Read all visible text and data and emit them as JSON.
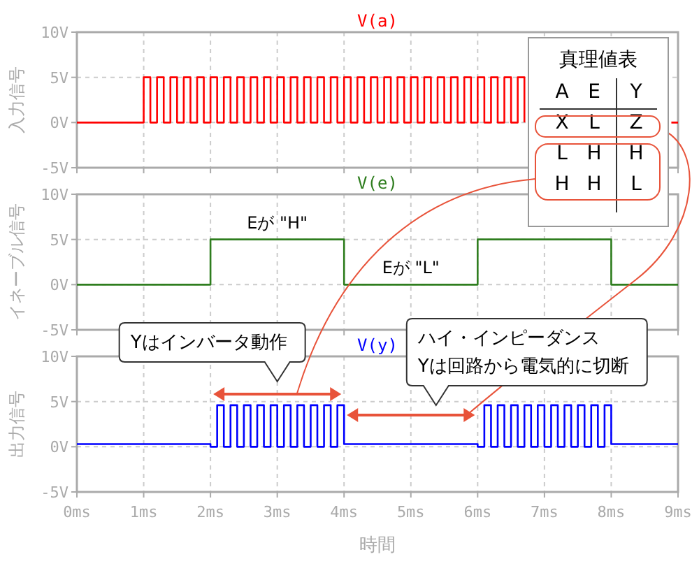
{
  "chart_data": [
    {
      "type": "step",
      "title": "V(a)",
      "ylabel": "入力信号",
      "xlim": [
        0,
        9
      ],
      "ylim": [
        -5,
        10
      ],
      "grid": true,
      "tick_labels": "y",
      "xticks": [
        0,
        1,
        2,
        3,
        4,
        5,
        6,
        7,
        8,
        9
      ],
      "yticks": [
        {
          "value": -5,
          "label": "-5V"
        },
        {
          "value": 0,
          "label": "0V"
        },
        {
          "value": 5,
          "label": "5V"
        },
        {
          "value": 10,
          "label": "10V"
        }
      ],
      "series": [
        {
          "color": "#ff0000",
          "x": [
            0,
            1,
            1.1,
            1.2,
            1.3,
            1.4,
            1.5,
            1.6,
            1.7,
            1.8,
            1.9,
            2,
            2.1,
            2.2,
            2.3,
            2.4,
            2.5,
            2.6,
            2.7,
            2.8,
            2.9,
            3,
            3.1,
            3.2,
            3.3,
            3.4,
            3.5,
            3.6,
            3.7,
            3.8,
            3.9,
            4,
            4.1,
            4.2,
            4.3,
            4.4,
            4.5,
            4.6,
            4.7,
            4.8,
            4.9,
            5,
            5.1,
            5.2,
            5.3,
            5.4,
            5.5,
            5.6,
            5.7,
            5.8,
            5.9,
            6,
            6.1,
            6.2,
            6.3,
            6.4,
            6.5,
            6.6,
            6.7,
            6.8,
            6.9,
            7,
            7.1,
            7.2,
            7.3,
            7.4,
            7.5,
            7.6,
            7.7,
            7.8,
            7.9,
            8,
            8.1,
            8.2,
            8.3,
            8.4,
            8.5,
            8.6,
            8.7,
            8.8,
            8.9,
            9
          ],
          "values": [
            0,
            5,
            0,
            5,
            0,
            5,
            0,
            5,
            0,
            5,
            0,
            5,
            0,
            5,
            0,
            5,
            0,
            5,
            0,
            5,
            0,
            5,
            0,
            5,
            0,
            5,
            0,
            5,
            0,
            5,
            0,
            5,
            0,
            5,
            0,
            5,
            0,
            5,
            0,
            5,
            0,
            5,
            0,
            5,
            0,
            5,
            0,
            5,
            0,
            5,
            0,
            5,
            0,
            5,
            0,
            5,
            0,
            5,
            0,
            null,
            null,
            null,
            null,
            null,
            null,
            null,
            null,
            null,
            null,
            null,
            null,
            null,
            null,
            null,
            null,
            null,
            null,
            null,
            null,
            null,
            0,
            0
          ]
        }
      ]
    },
    {
      "type": "step",
      "title": "V(e)",
      "ylabel": "イネーブル信号",
      "xlim": [
        0,
        9
      ],
      "ylim": [
        -5,
        10
      ],
      "grid": true,
      "tick_labels": "y",
      "xticks": [
        0,
        1,
        2,
        3,
        4,
        5,
        6,
        7,
        8,
        9
      ],
      "yticks": [
        {
          "value": -5,
          "label": "-5V"
        },
        {
          "value": 0,
          "label": "0V"
        },
        {
          "value": 5,
          "label": "5V"
        },
        {
          "value": 10,
          "label": "10V"
        }
      ],
      "annotations": [
        {
          "text": "Eが \"H\"",
          "x": 3,
          "y": 5
        },
        {
          "text": "Eが \"L\"",
          "x": 5,
          "y": 0
        }
      ],
      "series": [
        {
          "color": "#2e7d1e",
          "x": [
            0,
            2,
            4,
            6,
            8,
            9
          ],
          "values": [
            0,
            5,
            0,
            5,
            0,
            0
          ]
        }
      ]
    },
    {
      "type": "step",
      "title": "V(y)",
      "ylabel": "出力信号",
      "xlabel": "時間",
      "xlim": [
        0,
        9
      ],
      "ylim": [
        -5,
        10
      ],
      "grid": true,
      "xticks": [
        {
          "value": 0,
          "label": "0ms"
        },
        {
          "value": 1,
          "label": "1ms"
        },
        {
          "value": 2,
          "label": "2ms"
        },
        {
          "value": 3,
          "label": "3ms"
        },
        {
          "value": 4,
          "label": "4ms"
        },
        {
          "value": 5,
          "label": "5ms"
        },
        {
          "value": 6,
          "label": "6ms"
        },
        {
          "value": 7,
          "label": "7ms"
        },
        {
          "value": 8,
          "label": "8ms"
        },
        {
          "value": 9,
          "label": "9ms"
        }
      ],
      "yticks": [
        {
          "value": -5,
          "label": "-5V"
        },
        {
          "value": 0,
          "label": "0V"
        },
        {
          "value": 5,
          "label": "5V"
        },
        {
          "value": 10,
          "label": "10V"
        }
      ],
      "annotations": [
        "Yはインバータ動作",
        "ハイ・インピーダンス\nYは回路から電気的に切断"
      ],
      "series": [
        {
          "color": "#0000ff",
          "x": [
            0,
            2,
            2.1,
            2.2,
            2.3,
            2.4,
            2.5,
            2.6,
            2.7,
            2.8,
            2.9,
            3,
            3.1,
            3.2,
            3.3,
            3.4,
            3.5,
            3.6,
            3.7,
            3.8,
            3.9,
            4,
            6,
            6.1,
            6.2,
            6.3,
            6.4,
            6.5,
            6.6,
            6.7,
            6.8,
            6.9,
            7,
            7.1,
            7.2,
            7.3,
            7.4,
            7.5,
            7.6,
            7.7,
            7.8,
            7.9,
            8,
            9
          ],
          "values": [
            0.3,
            0,
            4.6,
            0,
            4.6,
            0,
            4.6,
            0,
            4.6,
            0,
            4.6,
            0,
            4.6,
            0,
            4.6,
            0,
            4.6,
            0,
            4.6,
            0,
            4.6,
            0.3,
            0,
            4.6,
            0,
            4.6,
            0,
            4.6,
            0,
            4.6,
            0,
            4.6,
            0,
            4.6,
            0,
            4.6,
            0,
            4.6,
            0,
            4.6,
            0,
            4.6,
            0.3,
            0.3
          ]
        }
      ]
    },
    {
      "type": "other",
      "title": "真理値表",
      "annotations": [
        "A",
        "E",
        "Y",
        "X",
        "L",
        "Z",
        "L",
        "H",
        "H",
        "H",
        "H",
        "L"
      ]
    }
  ]
}
